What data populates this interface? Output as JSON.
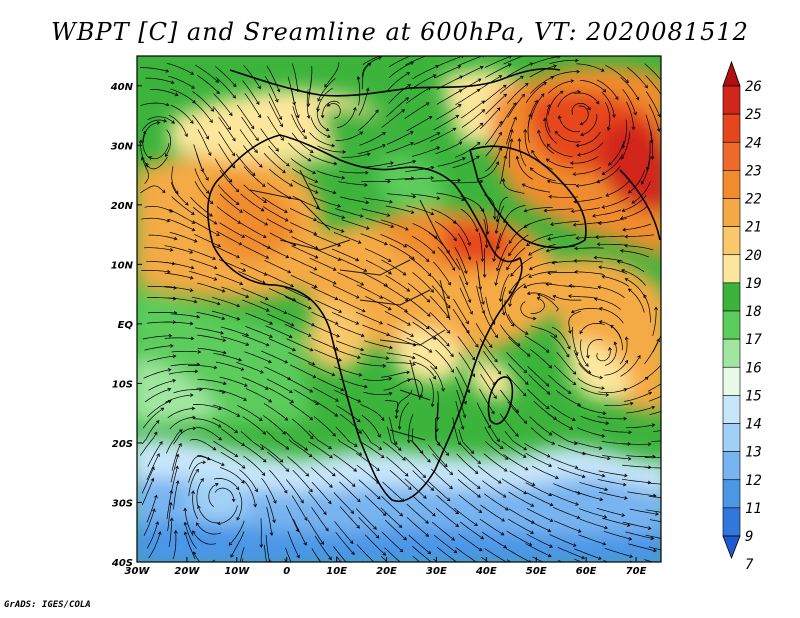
{
  "title": "WBPT [C] and Sreamline at 600hPa, VT: 2020081512",
  "credit": "GrADS: IGES/COLA",
  "map": {
    "lon_range": [
      -30,
      75
    ],
    "lat_range": [
      -40,
      45
    ],
    "lon_ticks": [
      {
        "v": -30,
        "label": "30W"
      },
      {
        "v": -20,
        "label": "20W"
      },
      {
        "v": -10,
        "label": "10W"
      },
      {
        "v": 0,
        "label": "0"
      },
      {
        "v": 10,
        "label": "10E"
      },
      {
        "v": 20,
        "label": "20E"
      },
      {
        "v": 30,
        "label": "30E"
      },
      {
        "v": 40,
        "label": "40E"
      },
      {
        "v": 50,
        "label": "50E"
      },
      {
        "v": 60,
        "label": "60E"
      },
      {
        "v": 70,
        "label": "70E"
      }
    ],
    "lat_ticks": [
      {
        "v": 40,
        "label": "40N"
      },
      {
        "v": 30,
        "label": "30N"
      },
      {
        "v": 20,
        "label": "20N"
      },
      {
        "v": 10,
        "label": "10N"
      },
      {
        "v": 0,
        "label": "EQ"
      },
      {
        "v": -10,
        "label": "10S"
      },
      {
        "v": -20,
        "label": "20S"
      },
      {
        "v": -30,
        "label": "30S"
      },
      {
        "v": -40,
        "label": "40S"
      }
    ]
  },
  "colorbar": {
    "levels": [
      "26",
      "25",
      "24",
      "23",
      "22",
      "21",
      "20",
      "19",
      "18",
      "17",
      "16",
      "15",
      "14",
      "13",
      "12",
      "11",
      "9",
      "7"
    ],
    "colors": [
      "#b40f0f",
      "#d2261a",
      "#e6461e",
      "#ee6a2a",
      "#f08c2e",
      "#f4aa44",
      "#f8c86a",
      "#fce79c",
      "#3cb43c",
      "#5ccc5c",
      "#a0e6a0",
      "#e6fae6",
      "#c8e6fa",
      "#a0d0f6",
      "#78b4f0",
      "#4c96e6",
      "#3278dc",
      "#1e5ad2"
    ]
  }
}
